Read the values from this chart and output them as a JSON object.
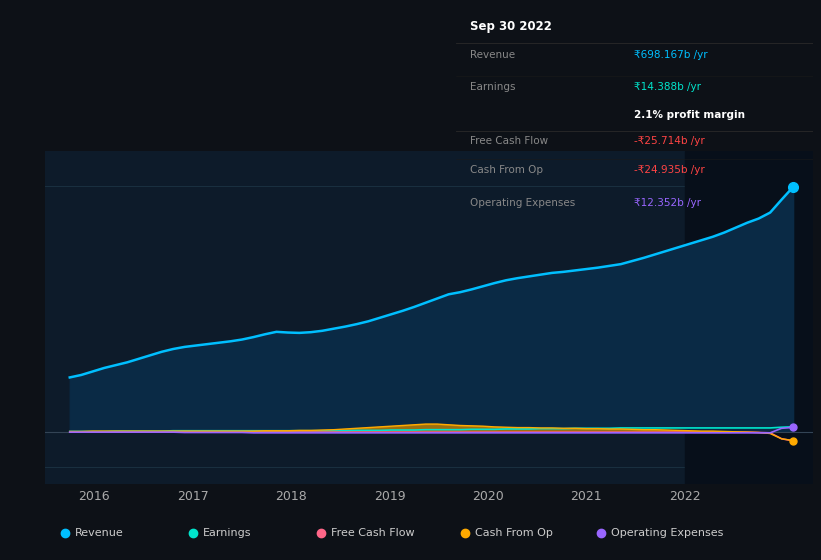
{
  "background_color": "#0d1117",
  "plot_bg_color": "#0d1b2a",
  "plot_bg_right_color": "#0a1520",
  "grid_color": "#1e3a4a",
  "text_color": "#aaaaaa",
  "tooltip": {
    "date": "Sep 30 2022",
    "revenue_label": "Revenue",
    "revenue_val": "₹698.167b /yr",
    "earnings_label": "Earnings",
    "earnings_val": "₹14.388b /yr",
    "profit_margin": "2.1% profit margin",
    "fcf_label": "Free Cash Flow",
    "fcf_val": "-₹25.714b /yr",
    "cashop_label": "Cash From Op",
    "cashop_val": "-₹24.935b /yr",
    "opex_label": "Operating Expenses",
    "opex_val": "₹12.352b /yr"
  },
  "revenue_color": "#00bfff",
  "earnings_color": "#00e5cc",
  "fcf_color": "#ff6688",
  "cashop_color": "#ffaa00",
  "opex_color": "#9966ff",
  "revenue_fill": "#0a2a45",
  "legend": [
    {
      "label": "Revenue",
      "color": "#00bfff"
    },
    {
      "label": "Earnings",
      "color": "#00e5cc"
    },
    {
      "label": "Free Cash Flow",
      "color": "#ff6688"
    },
    {
      "label": "Cash From Op",
      "color": "#ffaa00"
    },
    {
      "label": "Operating Expenses",
      "color": "#9966ff"
    }
  ],
  "xlim": [
    2015.5,
    2023.3
  ],
  "ylim": [
    -150,
    800
  ],
  "xticks": [
    2016,
    2017,
    2018,
    2019,
    2020,
    2021,
    2022
  ],
  "vertical_line_x": 2022.0,
  "revenue": [
    155,
    162,
    172,
    182,
    190,
    198,
    208,
    218,
    228,
    236,
    242,
    246,
    250,
    254,
    258,
    263,
    270,
    278,
    285,
    283,
    282,
    284,
    288,
    294,
    300,
    307,
    315,
    325,
    335,
    345,
    356,
    368,
    380,
    392,
    398,
    406,
    415,
    424,
    432,
    438,
    443,
    448,
    453,
    456,
    460,
    464,
    468,
    473,
    478,
    487,
    496,
    506,
    516,
    526,
    536,
    546,
    556,
    568,
    582,
    596,
    608,
    625,
    662,
    698
  ],
  "earnings": [
    1,
    1,
    1,
    1,
    2,
    2,
    2,
    2,
    2,
    3,
    3,
    3,
    3,
    3,
    3,
    3,
    3,
    3,
    3,
    3,
    3,
    3,
    3,
    3,
    3,
    4,
    4,
    4,
    5,
    5,
    5,
    6,
    6,
    6,
    6,
    7,
    7,
    7,
    8,
    8,
    8,
    9,
    9,
    9,
    10,
    10,
    10,
    10,
    11,
    11,
    11,
    11,
    11,
    11,
    11,
    11,
    11,
    11,
    11,
    11,
    11,
    11,
    13,
    14.388
  ],
  "fcf": [
    -1,
    -1,
    -1,
    -1,
    -1,
    -1,
    -1,
    -1,
    -1,
    -1,
    -1,
    -1,
    -1,
    -1,
    -1,
    -1,
    -1,
    -1,
    -1,
    -1,
    -1,
    -1,
    -1,
    -1,
    -1,
    -1,
    -1,
    -1,
    -1,
    -1,
    -1,
    -1,
    -1,
    -1,
    -1,
    -1,
    -1,
    -1,
    -1,
    -1,
    -1,
    -1,
    -1,
    -1,
    -1,
    -1,
    -1,
    -1,
    -1,
    -1,
    -1,
    -1,
    -1,
    -1,
    -1,
    -1,
    -1,
    -1,
    -1,
    -1,
    -2,
    -3,
    -20,
    -25.714
  ],
  "cashop": [
    1,
    1,
    2,
    2,
    2,
    2,
    2,
    2,
    2,
    2,
    2,
    2,
    2,
    2,
    2,
    2,
    2,
    3,
    3,
    3,
    4,
    4,
    5,
    6,
    8,
    10,
    12,
    14,
    16,
    18,
    20,
    22,
    22,
    20,
    18,
    17,
    16,
    14,
    13,
    12,
    12,
    11,
    11,
    10,
    10,
    9,
    9,
    8,
    8,
    7,
    6,
    6,
    5,
    4,
    3,
    2,
    2,
    1,
    0,
    -1,
    -2,
    -5,
    -20,
    -24.935
  ],
  "opex": [
    -1,
    -1,
    -1,
    -1,
    -1,
    -1,
    -1,
    -1,
    -1,
    -1,
    -2,
    -2,
    -2,
    -2,
    -2,
    -2,
    -3,
    -3,
    -3,
    -3,
    -3,
    -3,
    -3,
    -3,
    -3,
    -3,
    -3,
    -3,
    -3,
    -3,
    -3,
    -3,
    -3,
    -3,
    -3,
    -3,
    -3,
    -3,
    -3,
    -3,
    -3,
    -3,
    -3,
    -3,
    -3,
    -3,
    -3,
    -3,
    -3,
    -3,
    -3,
    -3,
    -3,
    -3,
    -3,
    -3,
    -3,
    -3,
    -3,
    -3,
    -3,
    -3,
    10,
    12.352
  ]
}
